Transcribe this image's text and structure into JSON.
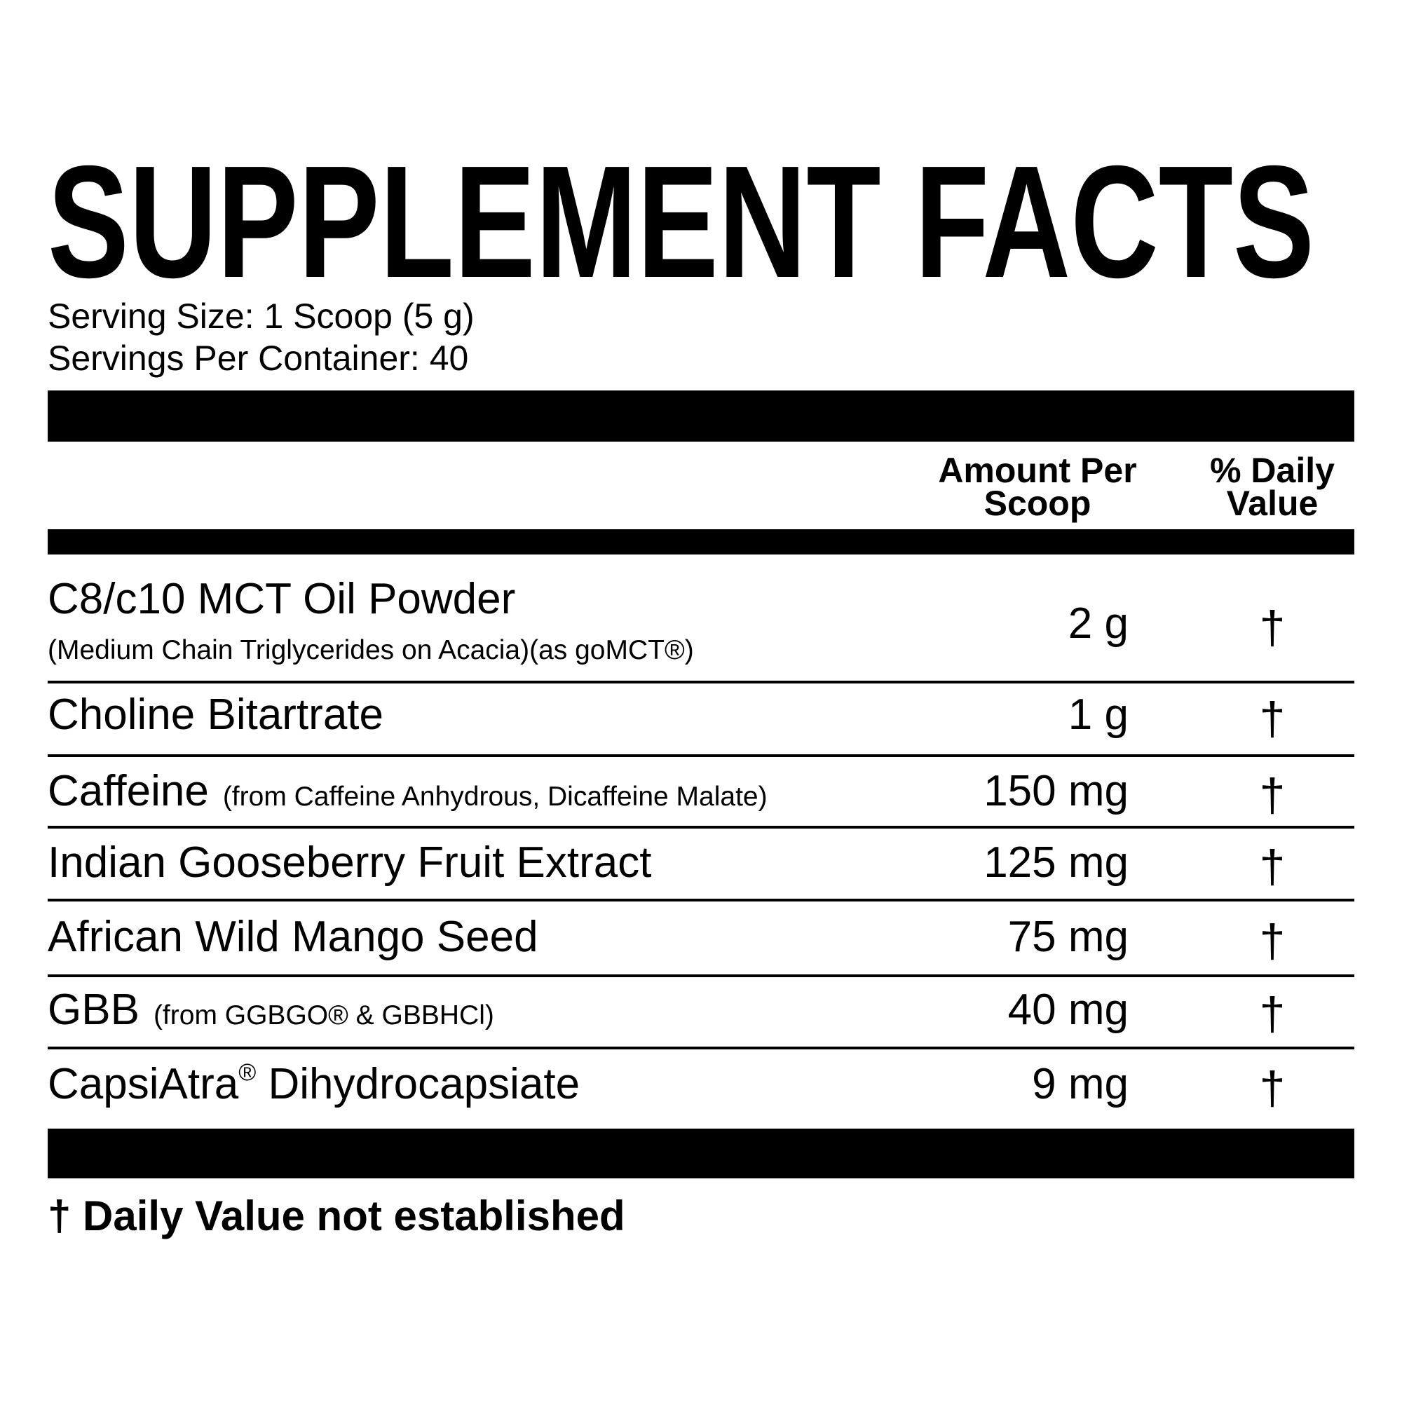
{
  "title": "SUPPLEMENT FACTS",
  "serving_size": "Serving Size: 1 Scoop (5 g)",
  "servings_per_container": "Servings Per Container: 40",
  "columns": {
    "amount": [
      "Amount Per",
      "Scoop"
    ],
    "daily_value": [
      "% Daily",
      "Value"
    ]
  },
  "rows": [
    {
      "name": "C8/c10 MCT Oil Powder",
      "note": "(Medium Chain Triglycerides on Acacia)(as goMCT®)",
      "amount": "2 g",
      "daily_value": "†"
    },
    {
      "name": "Choline Bitartrate",
      "amount": "1 g",
      "daily_value": "†"
    },
    {
      "name": "Caffeine",
      "note": "(from Caffeine Anhydrous, Dicaffeine Malate)",
      "amount": "150 mg",
      "daily_value": "†"
    },
    {
      "name": "Indian Gooseberry Fruit Extract",
      "amount": "125 mg",
      "daily_value": "†"
    },
    {
      "name": "African Wild Mango Seed",
      "amount": "75 mg",
      "daily_value": "†"
    },
    {
      "name": "GBB",
      "note": "(from GGBGO® & GBBHCl)",
      "amount": "40 mg",
      "daily_value": "†"
    },
    {
      "name": "CapsiAtra",
      "mark": "®",
      "name_rest": "Dihydrocapsiate",
      "amount": "9 mg",
      "daily_value": "†"
    }
  ],
  "footnote": "† Daily Value not established"
}
